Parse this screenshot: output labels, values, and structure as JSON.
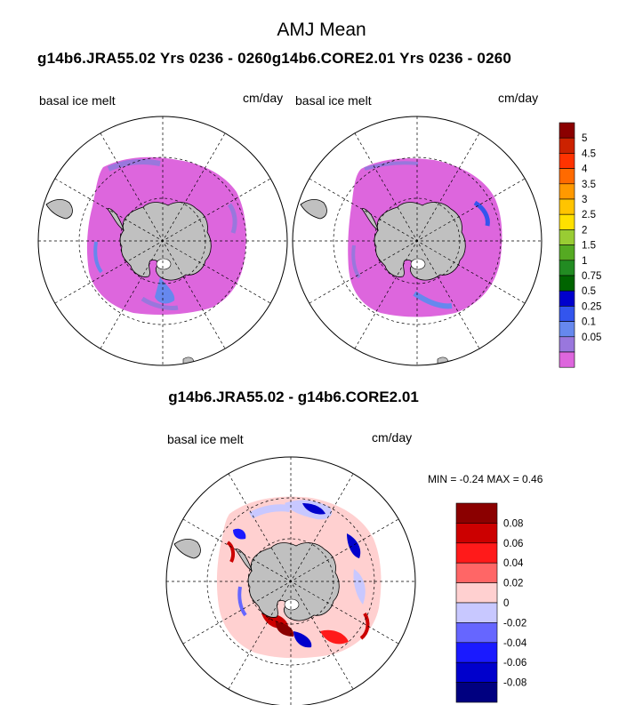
{
  "page": {
    "title": "AMJ Mean",
    "run_titles": "g14b6.JRA55.02  Yrs 0236 - 0260g14b6.CORE2.01  Yrs 0236 - 0260",
    "diff_title": "g14b6.JRA55.02 - g14b6.CORE2.01",
    "stats": "MIN =  -0.24 MAX =   0.46"
  },
  "panels": [
    {
      "id": "left",
      "variable": "basal ice melt",
      "units": "cm/day"
    },
    {
      "id": "right",
      "variable": "basal ice melt",
      "units": "cm/day"
    },
    {
      "id": "diff",
      "variable": "basal ice melt",
      "units": "cm/day"
    }
  ],
  "colorbars": {
    "main": {
      "labels": [
        "5",
        "4.5",
        "4",
        "3.5",
        "3",
        "2.5",
        "2",
        "1.5",
        "1",
        "0.75",
        "0.5",
        "0.25",
        "0.1",
        "0.05"
      ],
      "colors": [
        "#8b0000",
        "#cc2200",
        "#ff3300",
        "#ff6a00",
        "#ff9900",
        "#ffc400",
        "#ffe000",
        "#99cc33",
        "#55aa22",
        "#228b22",
        "#006400",
        "#0000cc",
        "#3355ee",
        "#6688ee",
        "#9977dd",
        "#dd66dd"
      ]
    },
    "diff": {
      "labels": [
        "0.08",
        "0.06",
        "0.04",
        "0.02",
        "0",
        "-0.02",
        "-0.04",
        "-0.06",
        "-0.08"
      ],
      "colors": [
        "#8b0000",
        "#cc0000",
        "#ff1a1a",
        "#ff6666",
        "#ffd0d0",
        "#c8c8ff",
        "#6666ff",
        "#1a1aff",
        "#0000cc",
        "#000080"
      ]
    }
  },
  "colors": {
    "land": "#c0c0c0",
    "melt_low": "#dd66dd",
    "melt_mid": "#6688ee"
  }
}
